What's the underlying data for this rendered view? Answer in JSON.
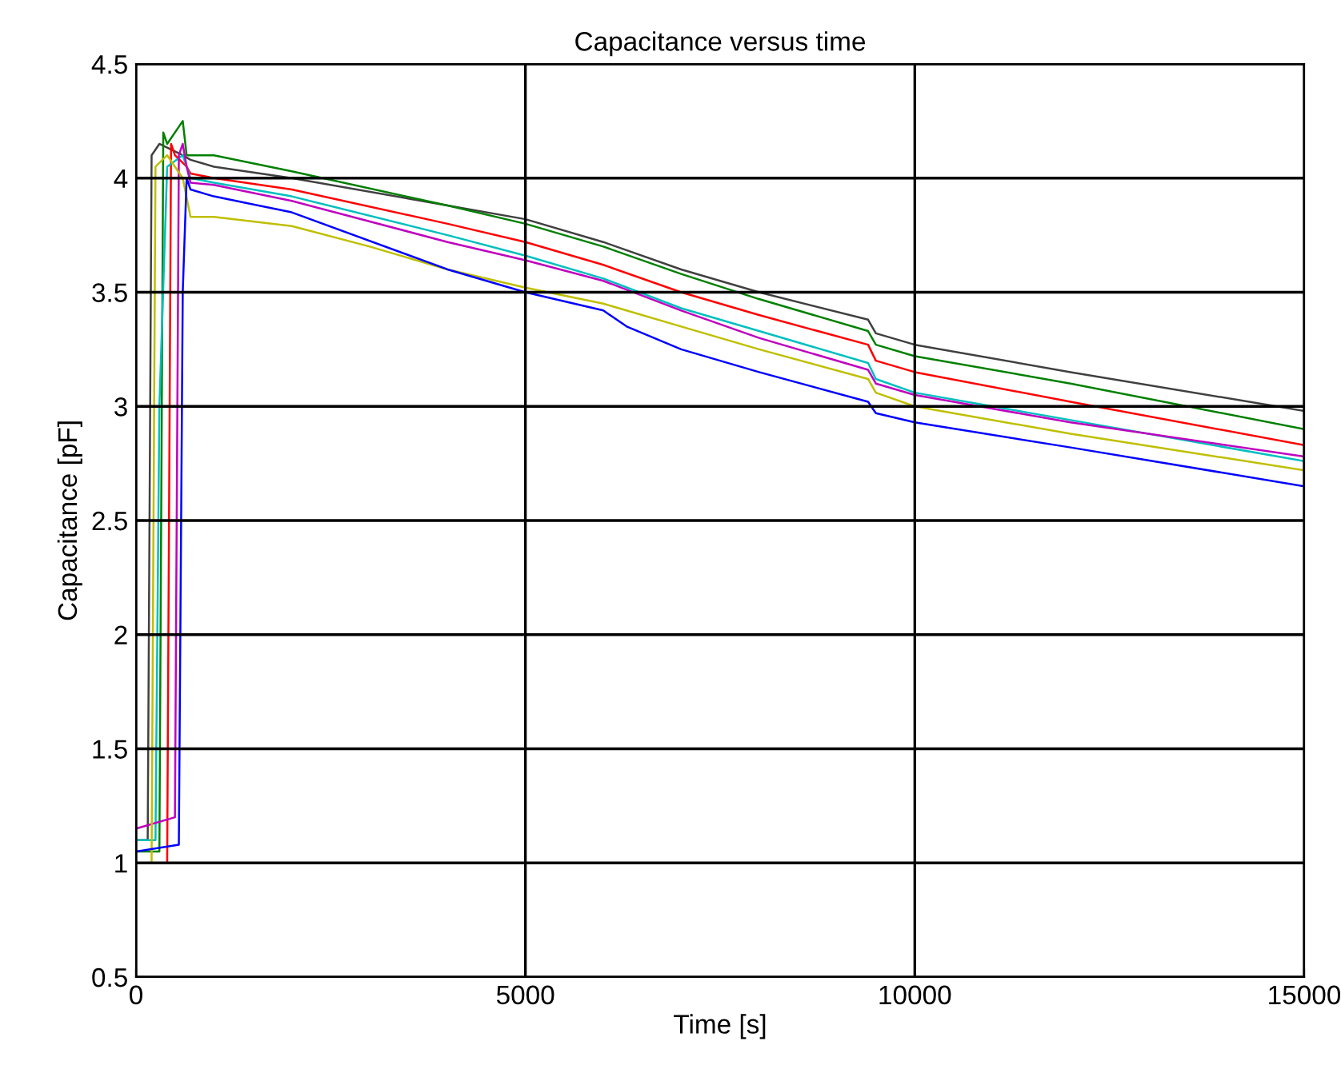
{
  "chart_data": {
    "type": "line",
    "title": "Capacitance versus time",
    "xlabel": "Time [s]",
    "ylabel": "Capacitance [pF]",
    "xlim": [
      0,
      15000
    ],
    "ylim": [
      0.5,
      4.5
    ],
    "xticks": [
      0,
      5000,
      10000,
      15000
    ],
    "yticks": [
      0.5,
      1,
      1.5,
      2,
      2.5,
      3,
      3.5,
      4,
      4.5
    ],
    "grid": true,
    "line_style": "solid",
    "marker": "none",
    "series": [
      {
        "color": "#404040",
        "x": [
          0,
          150,
          200,
          300,
          600,
          700,
          1000,
          2000,
          4000,
          5000,
          6000,
          7000,
          8000,
          9400,
          9500,
          10000,
          12000,
          15000
        ],
        "values": [
          1.1,
          1.1,
          4.1,
          4.15,
          4.1,
          4.08,
          4.05,
          4.0,
          3.88,
          3.82,
          3.72,
          3.6,
          3.5,
          3.38,
          3.32,
          3.27,
          3.15,
          2.98
        ]
      },
      {
        "color": "#008000",
        "x": [
          0,
          300,
          350,
          400,
          600,
          650,
          1000,
          2000,
          4000,
          5000,
          6000,
          7000,
          8000,
          9400,
          9500,
          10000,
          12000,
          15000
        ],
        "values": [
          1.05,
          1.05,
          4.2,
          4.15,
          4.25,
          4.1,
          4.1,
          4.03,
          3.88,
          3.8,
          3.7,
          3.58,
          3.47,
          3.33,
          3.27,
          3.22,
          3.1,
          2.9
        ]
      },
      {
        "color": "#ff0000",
        "x": [
          0,
          400,
          450,
          500,
          650,
          700,
          1000,
          2000,
          4000,
          5000,
          6000,
          7000,
          8000,
          9400,
          9500,
          10000,
          12000,
          15000
        ],
        "values": [
          1.0,
          1.0,
          4.15,
          4.1,
          4.05,
          4.02,
          4.0,
          3.95,
          3.8,
          3.72,
          3.62,
          3.5,
          3.4,
          3.27,
          3.2,
          3.15,
          3.02,
          2.83
        ]
      },
      {
        "color": "#00bfbf",
        "x": [
          0,
          250,
          300,
          400,
          600,
          700,
          1000,
          2000,
          4000,
          5000,
          6000,
          7000,
          8000,
          9400,
          9500,
          10000,
          12000,
          15000
        ],
        "values": [
          1.1,
          1.1,
          3.0,
          4.05,
          4.1,
          4.0,
          3.98,
          3.92,
          3.75,
          3.66,
          3.56,
          3.43,
          3.33,
          3.19,
          3.12,
          3.06,
          2.94,
          2.76
        ]
      },
      {
        "color": "#bf00bf",
        "x": [
          0,
          500,
          550,
          600,
          650,
          700,
          1000,
          2000,
          4000,
          5000,
          6000,
          7000,
          8000,
          9400,
          9500,
          10000,
          12000,
          15000
        ],
        "values": [
          1.15,
          1.2,
          4.1,
          4.15,
          4.05,
          3.98,
          3.97,
          3.9,
          3.72,
          3.64,
          3.55,
          3.42,
          3.3,
          3.16,
          3.1,
          3.05,
          2.93,
          2.78
        ]
      },
      {
        "color": "#bfbf00",
        "x": [
          0,
          200,
          250,
          400,
          600,
          700,
          1000,
          2000,
          3000,
          4000,
          5000,
          6000,
          7000,
          8000,
          9400,
          9500,
          10000,
          12000,
          15000
        ],
        "values": [
          1.0,
          1.0,
          4.05,
          4.1,
          4.0,
          3.83,
          3.83,
          3.79,
          3.7,
          3.6,
          3.52,
          3.45,
          3.35,
          3.25,
          3.12,
          3.06,
          3.0,
          2.88,
          2.72
        ]
      },
      {
        "color": "#0000ff",
        "x": [
          0,
          550,
          600,
          650,
          700,
          1000,
          2000,
          4000,
          5000,
          6000,
          6300,
          7000,
          8000,
          9400,
          9500,
          10000,
          12000,
          15000
        ],
        "values": [
          1.05,
          1.08,
          3.5,
          4.0,
          3.95,
          3.92,
          3.85,
          3.6,
          3.5,
          3.42,
          3.35,
          3.25,
          3.15,
          3.02,
          2.97,
          2.93,
          2.82,
          2.65
        ]
      }
    ]
  }
}
